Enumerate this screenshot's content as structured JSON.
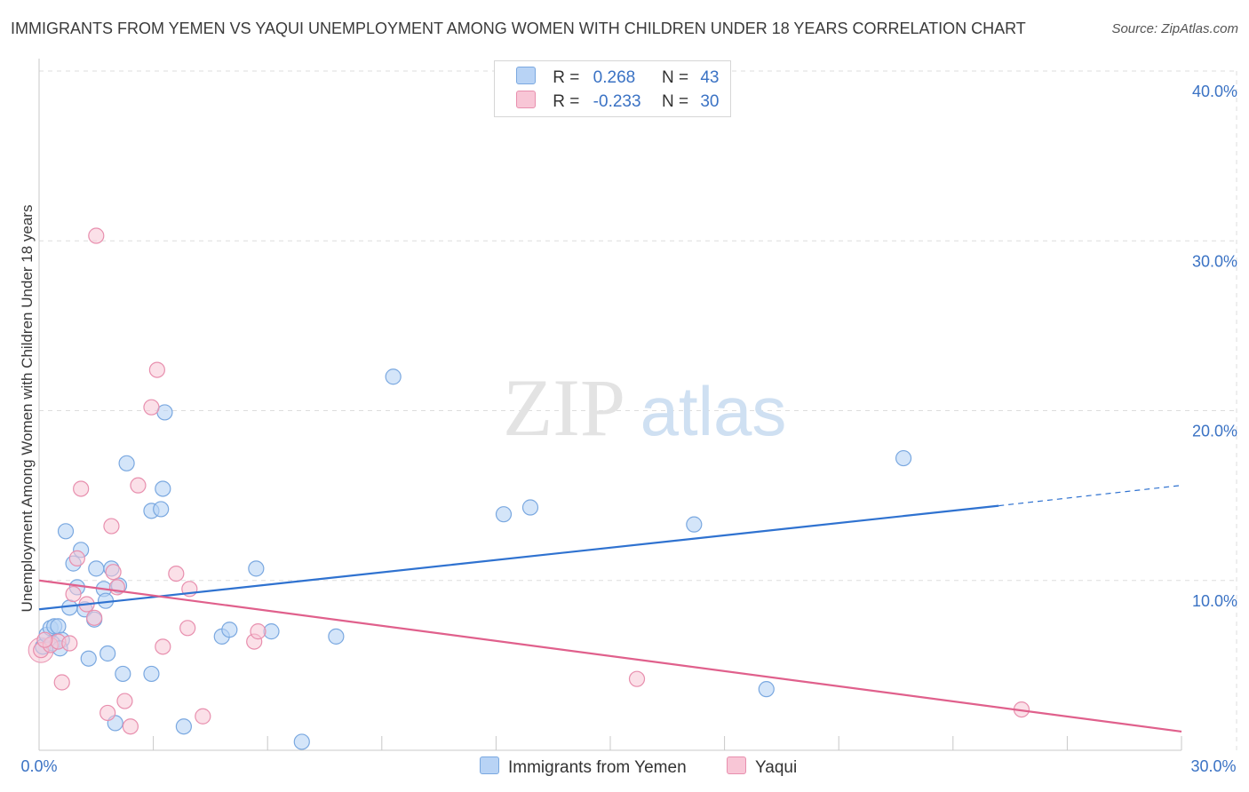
{
  "header": {
    "title": "IMMIGRANTS FROM YEMEN VS YAQUI UNEMPLOYMENT AMONG WOMEN WITH CHILDREN UNDER 18 YEARS CORRELATION CHART",
    "source": "Source: ZipAtlas.com"
  },
  "watermark": {
    "zip": "ZIP",
    "atlas": "atlas"
  },
  "legend": {
    "row1": {
      "r_label": "R =",
      "r_value": "0.268",
      "n_label": "N =",
      "n_value": "43"
    },
    "row2": {
      "r_label": "R =",
      "r_value": "-0.233",
      "n_label": "N =",
      "n_value": "30"
    }
  },
  "colors": {
    "yemen_fill": "#b8d3f5",
    "yemen_stroke": "#7aa8e0",
    "yemen_line": "#2f72d0",
    "yaqui_fill": "#f8c6d6",
    "yaqui_stroke": "#e88fae",
    "yaqui_line": "#e0608c",
    "tick_label": "#3a72c4",
    "grid": "#dddddd"
  },
  "chart_data": {
    "type": "scatter",
    "title": "IMMIGRANTS FROM YEMEN VS YAQUI UNEMPLOYMENT AMONG WOMEN WITH CHILDREN UNDER 18 YEARS CORRELATION CHART",
    "xlabel": "",
    "ylabel": "Unemployment Among Women with Children Under 18 years",
    "xlim": [
      0,
      30
    ],
    "ylim": [
      0,
      40
    ],
    "x_tick_labels": [
      "0.0%",
      "30.0%"
    ],
    "y_ticks": [
      10,
      20,
      30,
      40
    ],
    "y_tick_labels": [
      "10.0%",
      "20.0%",
      "30.0%",
      "40.0%"
    ],
    "legend_position": "bottom-center",
    "series": [
      {
        "name": "Immigrants from Yemen",
        "points": [
          [
            0.1,
            6.1
          ],
          [
            0.2,
            6.8
          ],
          [
            0.3,
            7.2
          ],
          [
            0.4,
            7.3
          ],
          [
            0.5,
            7.3
          ],
          [
            0.6,
            6.5
          ],
          [
            0.7,
            12.9
          ],
          [
            0.8,
            8.4
          ],
          [
            0.9,
            11.0
          ],
          [
            1.0,
            9.6
          ],
          [
            1.1,
            11.8
          ],
          [
            1.2,
            8.3
          ],
          [
            1.3,
            5.4
          ],
          [
            1.45,
            7.7
          ],
          [
            1.5,
            10.7
          ],
          [
            1.7,
            9.5
          ],
          [
            1.75,
            8.8
          ],
          [
            1.8,
            5.7
          ],
          [
            1.9,
            10.7
          ],
          [
            2.0,
            1.6
          ],
          [
            2.1,
            9.7
          ],
          [
            2.2,
            4.5
          ],
          [
            2.3,
            16.9
          ],
          [
            2.95,
            4.5
          ],
          [
            2.95,
            14.1
          ],
          [
            3.2,
            14.2
          ],
          [
            3.25,
            15.4
          ],
          [
            3.3,
            19.9
          ],
          [
            3.8,
            1.4
          ],
          [
            4.8,
            6.7
          ],
          [
            5.0,
            7.1
          ],
          [
            5.7,
            10.7
          ],
          [
            6.1,
            7.0
          ],
          [
            6.9,
            0.5
          ],
          [
            7.8,
            6.7
          ],
          [
            9.3,
            22.0
          ],
          [
            12.2,
            13.9
          ],
          [
            12.9,
            14.3
          ],
          [
            17.2,
            13.3
          ],
          [
            19.1,
            3.6
          ],
          [
            22.7,
            17.2
          ],
          [
            0.35,
            6.3
          ],
          [
            0.55,
            6.0
          ]
        ],
        "trend": {
          "from": [
            0,
            8.3
          ],
          "to": [
            25.2,
            14.4
          ],
          "dashed_to": [
            30,
            15.6
          ]
        }
      },
      {
        "name": "Yaqui",
        "points": [
          [
            0.05,
            5.9
          ],
          [
            0.3,
            6.2
          ],
          [
            0.5,
            6.4
          ],
          [
            0.6,
            4.0
          ],
          [
            0.8,
            6.3
          ],
          [
            0.9,
            9.2
          ],
          [
            1.0,
            11.3
          ],
          [
            1.1,
            15.4
          ],
          [
            1.25,
            8.6
          ],
          [
            1.45,
            7.8
          ],
          [
            1.5,
            30.3
          ],
          [
            1.8,
            2.2
          ],
          [
            1.9,
            13.2
          ],
          [
            1.95,
            10.5
          ],
          [
            2.05,
            9.6
          ],
          [
            2.25,
            2.9
          ],
          [
            2.4,
            1.4
          ],
          [
            2.6,
            15.6
          ],
          [
            2.95,
            20.2
          ],
          [
            3.1,
            22.4
          ],
          [
            3.25,
            6.1
          ],
          [
            3.6,
            10.4
          ],
          [
            3.9,
            7.2
          ],
          [
            3.95,
            9.5
          ],
          [
            4.3,
            2.0
          ],
          [
            5.65,
            6.4
          ],
          [
            5.75,
            7.0
          ],
          [
            15.7,
            4.2
          ],
          [
            25.8,
            2.4
          ],
          [
            0.15,
            6.5
          ]
        ],
        "trend": {
          "from": [
            0,
            10.0
          ],
          "to": [
            30,
            1.1
          ]
        }
      }
    ]
  },
  "bottom_legend": {
    "item1": "Immigrants from Yemen",
    "item2": "Yaqui"
  }
}
